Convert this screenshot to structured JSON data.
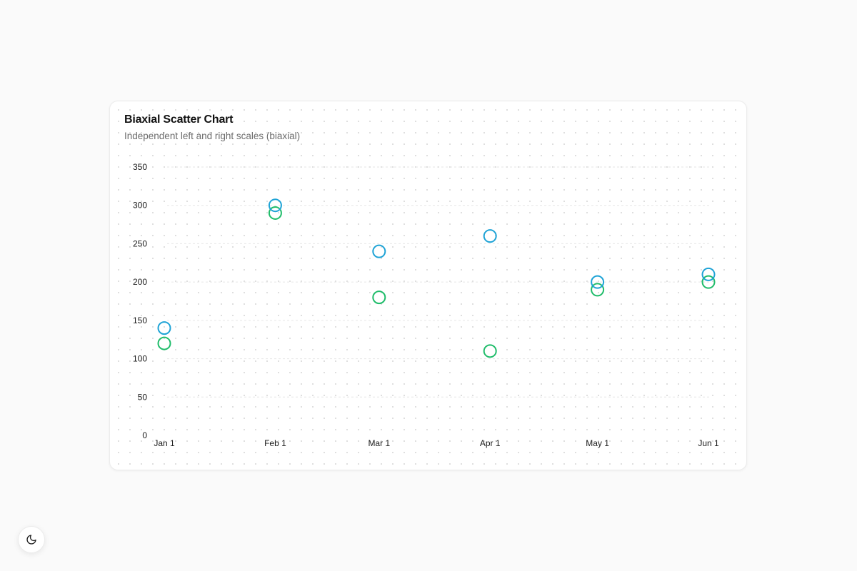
{
  "chart": {
    "title": "Biaxial Scatter Chart",
    "subtitle": "Independent left and right scales (biaxial)"
  },
  "theme_toggle": {
    "icon": "moon-icon"
  },
  "colors": {
    "series_blue": "#1ea3d6",
    "series_green": "#1fbc6a",
    "grid": "#e6e6e6",
    "text": "#1a1a1a"
  },
  "chart_data": {
    "type": "scatter",
    "title": "Biaxial Scatter Chart",
    "subtitle": "Independent left and right scales (biaxial)",
    "x": [
      "Jan 1",
      "Feb 1",
      "Mar 1",
      "Apr 1",
      "May 1",
      "Jun 1"
    ],
    "x_dates": [
      "2024-01-01",
      "2024-02-01",
      "2024-03-01",
      "2024-04-01",
      "2024-05-01",
      "2024-06-01"
    ],
    "yticks": [
      0,
      50,
      100,
      150,
      200,
      250,
      300,
      350
    ],
    "ylim": [
      0,
      350
    ],
    "grid": true,
    "series": [
      {
        "color": "#1ea3d6",
        "values": [
          140,
          300,
          240,
          260,
          200,
          210
        ]
      },
      {
        "color": "#1fbc6a",
        "values": [
          120,
          290,
          180,
          110,
          190,
          200
        ]
      }
    ]
  }
}
